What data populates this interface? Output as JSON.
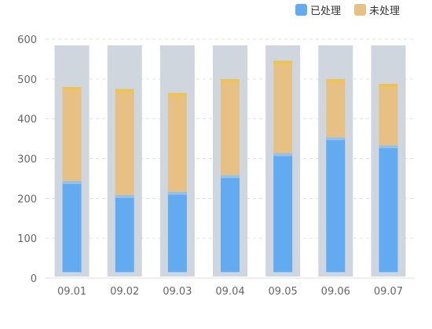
{
  "chart_data": {
    "type": "bar",
    "stacked": true,
    "categories": [
      "09.01",
      "09.02",
      "09.03",
      "09.04",
      "09.05",
      "09.06",
      "09.07"
    ],
    "series": [
      {
        "name": "已处理",
        "color": "#63abf0",
        "cap_color": "#8cc3f5",
        "values": [
          225,
          190,
          198,
          240,
          295,
          335,
          315
        ]
      },
      {
        "name": "未处理",
        "color": "#e7c184",
        "cap_color": "#f2c347",
        "values": [
          232,
          262,
          244,
          237,
          228,
          142,
          150
        ]
      }
    ],
    "background_bar": {
      "value": 580,
      "color": "#cfd6dd"
    },
    "baseline_offset": 15,
    "ylim": [
      0,
      600
    ],
    "yticks": [
      0,
      100,
      200,
      300,
      400,
      500,
      600
    ],
    "grid": true,
    "legend_position": "top-right"
  }
}
